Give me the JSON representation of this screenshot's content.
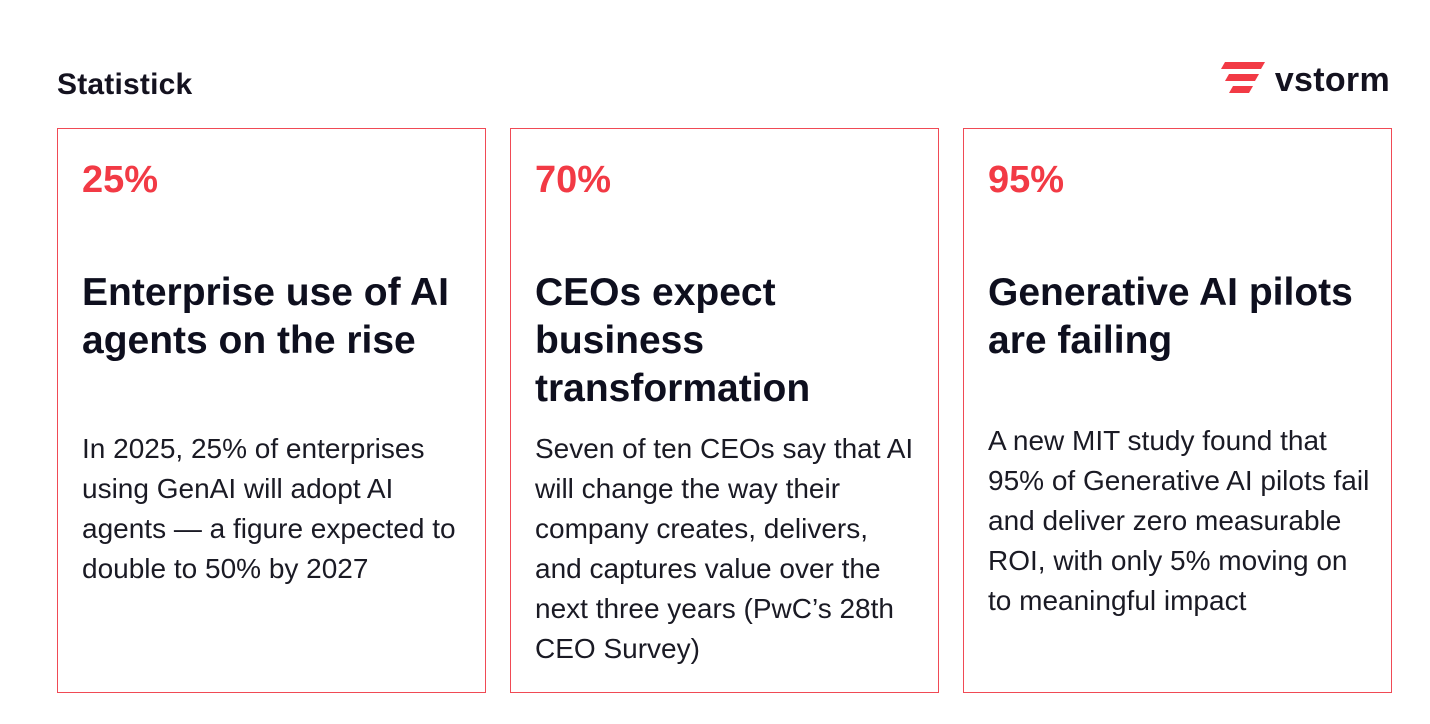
{
  "header": {
    "title": "Statistick"
  },
  "logo": {
    "icon": "vstorm-logo-icon",
    "wordmark": "vstorm",
    "accent_color": "#f23a45"
  },
  "cards": [
    {
      "stat": "25%",
      "title": "Enterprise use of AI agents on the rise",
      "body": "In 2025, 25% of enterprises using GenAI will adopt AI agents — a figure expected to double to 50% by 2027"
    },
    {
      "stat": "70%",
      "title": "CEOs expect business transformation",
      "body": "Seven of ten CEOs say that AI will change the way their company creates, delivers, and captures value over the next three years (PwC’s 28th CEO Survey)"
    },
    {
      "stat": "95%",
      "title": "Generative AI pilots are failing",
      "body": "A new MIT study found that 95% of Generative AI pilots fail and deliver zero measurable ROI, with only 5% moving on to meaningful impact"
    }
  ]
}
